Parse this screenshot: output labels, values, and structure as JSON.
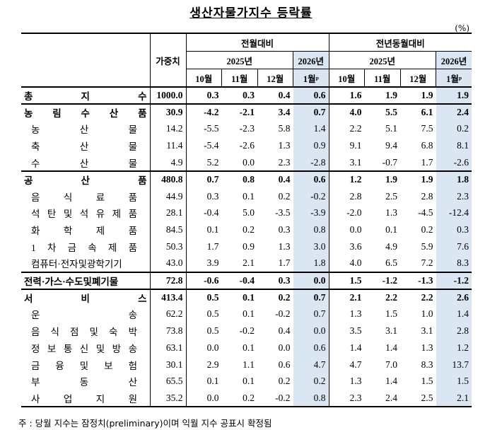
{
  "title": "생산자물가지수 등락률",
  "unit": "(%)",
  "header": {
    "weight": "가중치",
    "mom": "전월대비",
    "yoy": "전년동월대비",
    "year2025": "2025년",
    "year2026": "2026년",
    "months": [
      "10월",
      "11월",
      "12월",
      "1월ᵖ"
    ]
  },
  "rows": [
    {
      "name": "총 지 수",
      "level": "top",
      "weight": "1000.0",
      "mom": [
        "0.3",
        "0.3",
        "0.4",
        "0.6"
      ],
      "yoy": [
        "1.6",
        "1.9",
        "1.9",
        "1.9"
      ]
    },
    {
      "name": "농 림 수 산 품",
      "level": "group",
      "weight": "30.9",
      "mom": [
        "-4.2",
        "-2.1",
        "3.4",
        "0.7"
      ],
      "yoy": [
        "4.0",
        "5.5",
        "6.1",
        "2.4"
      ]
    },
    {
      "name": "농 산 물",
      "level": "sub",
      "weight": "14.2",
      "mom": [
        "-5.5",
        "-2.3",
        "5.8",
        "1.4"
      ],
      "yoy": [
        "2.2",
        "5.1",
        "7.5",
        "0.2"
      ]
    },
    {
      "name": "축 산 물",
      "level": "sub",
      "weight": "11.4",
      "mom": [
        "-5.4",
        "-2.6",
        "1.3",
        "0.9"
      ],
      "yoy": [
        "9.1",
        "9.4",
        "6.8",
        "8.1"
      ]
    },
    {
      "name": "수 산 물",
      "level": "sub",
      "weight": "4.9",
      "mom": [
        "5.2",
        "0.0",
        "2.3",
        "-2.8"
      ],
      "yoy": [
        "3.1",
        "-0.7",
        "1.7",
        "-2.6"
      ]
    },
    {
      "name": "공 산 품",
      "level": "group",
      "weight": "480.8",
      "mom": [
        "0.7",
        "0.8",
        "0.4",
        "0.6"
      ],
      "yoy": [
        "1.2",
        "1.9",
        "1.9",
        "1.8"
      ]
    },
    {
      "name": "음 식 료 품",
      "level": "sub",
      "weight": "44.9",
      "mom": [
        "0.3",
        "0.1",
        "0.2",
        "-0.2"
      ],
      "yoy": [
        "2.8",
        "2.5",
        "2.8",
        "2.3"
      ]
    },
    {
      "name": "석 탄 및 석 유 제 품",
      "level": "sub",
      "weight": "28.1",
      "mom": [
        "-0.4",
        "5.0",
        "-3.5",
        "-3.9"
      ],
      "yoy": [
        "-2.0",
        "1.3",
        "-4.5",
        "-12.4"
      ]
    },
    {
      "name": "화 학 제 품",
      "level": "sub",
      "weight": "84.5",
      "mom": [
        "0.1",
        "0.2",
        "0.3",
        "0.8"
      ],
      "yoy": [
        "0.0",
        "0.1",
        "0.2",
        "0.3"
      ]
    },
    {
      "name": "1 차 금 속 제 품",
      "level": "sub",
      "weight": "50.3",
      "mom": [
        "1.7",
        "0.9",
        "1.3",
        "3.0"
      ],
      "yoy": [
        "3.6",
        "4.9",
        "5.9",
        "7.6"
      ]
    },
    {
      "name": "컴퓨터·전자및광학기기",
      "level": "sub",
      "weight": "43.0",
      "mom": [
        "3.9",
        "2.1",
        "1.7",
        "1.8"
      ],
      "yoy": [
        "4.0",
        "6.5",
        "7.2",
        "8.3"
      ]
    },
    {
      "name": "전력·가스·수도및폐기물",
      "level": "group",
      "weight": "72.8",
      "mom": [
        "-0.6",
        "-0.4",
        "0.3",
        "0.0"
      ],
      "yoy": [
        "1.5",
        "-1.2",
        "-1.3",
        "-1.2"
      ]
    },
    {
      "name": "서 비 스",
      "level": "group",
      "weight": "413.4",
      "mom": [
        "0.5",
        "0.1",
        "0.2",
        "0.7"
      ],
      "yoy": [
        "2.1",
        "2.2",
        "2.2",
        "2.6"
      ]
    },
    {
      "name": "운 송",
      "level": "sub",
      "weight": "62.2",
      "mom": [
        "0.5",
        "0.1",
        "-0.2",
        "0.7"
      ],
      "yoy": [
        "1.3",
        "1.5",
        "1.0",
        "1.4"
      ]
    },
    {
      "name": "음 식 점 및 숙 박",
      "level": "sub",
      "weight": "73.8",
      "mom": [
        "0.5",
        "-0.2",
        "0.4",
        "0.0"
      ],
      "yoy": [
        "3.5",
        "3.1",
        "3.1",
        "2.8"
      ]
    },
    {
      "name": "정 보 통 신 및 방 송",
      "level": "sub",
      "weight": "63.1",
      "mom": [
        "0.0",
        "0.1",
        "0.0",
        "0.6"
      ],
      "yoy": [
        "1.4",
        "1.4",
        "1.3",
        "1.2"
      ]
    },
    {
      "name": "금 융 및 보 험",
      "level": "sub",
      "weight": "30.1",
      "mom": [
        "2.9",
        "1.1",
        "0.6",
        "4.7"
      ],
      "yoy": [
        "4.7",
        "7.0",
        "8.3",
        "13.7"
      ]
    },
    {
      "name": "부 동 산",
      "level": "sub",
      "weight": "65.5",
      "mom": [
        "0.1",
        "0.1",
        "0.2",
        "0.2"
      ],
      "yoy": [
        "1.3",
        "1.4",
        "1.5",
        "1.5"
      ]
    },
    {
      "name": "사 업 지 원",
      "level": "sub",
      "weight": "35.2",
      "mom": [
        "0.0",
        "0.2",
        "-0.2",
        "0.8"
      ],
      "yoy": [
        "2.3",
        "2.4",
        "2.5",
        "2.1"
      ]
    }
  ],
  "note": "주 : 당월 지수는 잠정치(preliminary)이며 익월 지수 공표시 확정됨",
  "colors": {
    "highlight": "#dbe6f3"
  }
}
